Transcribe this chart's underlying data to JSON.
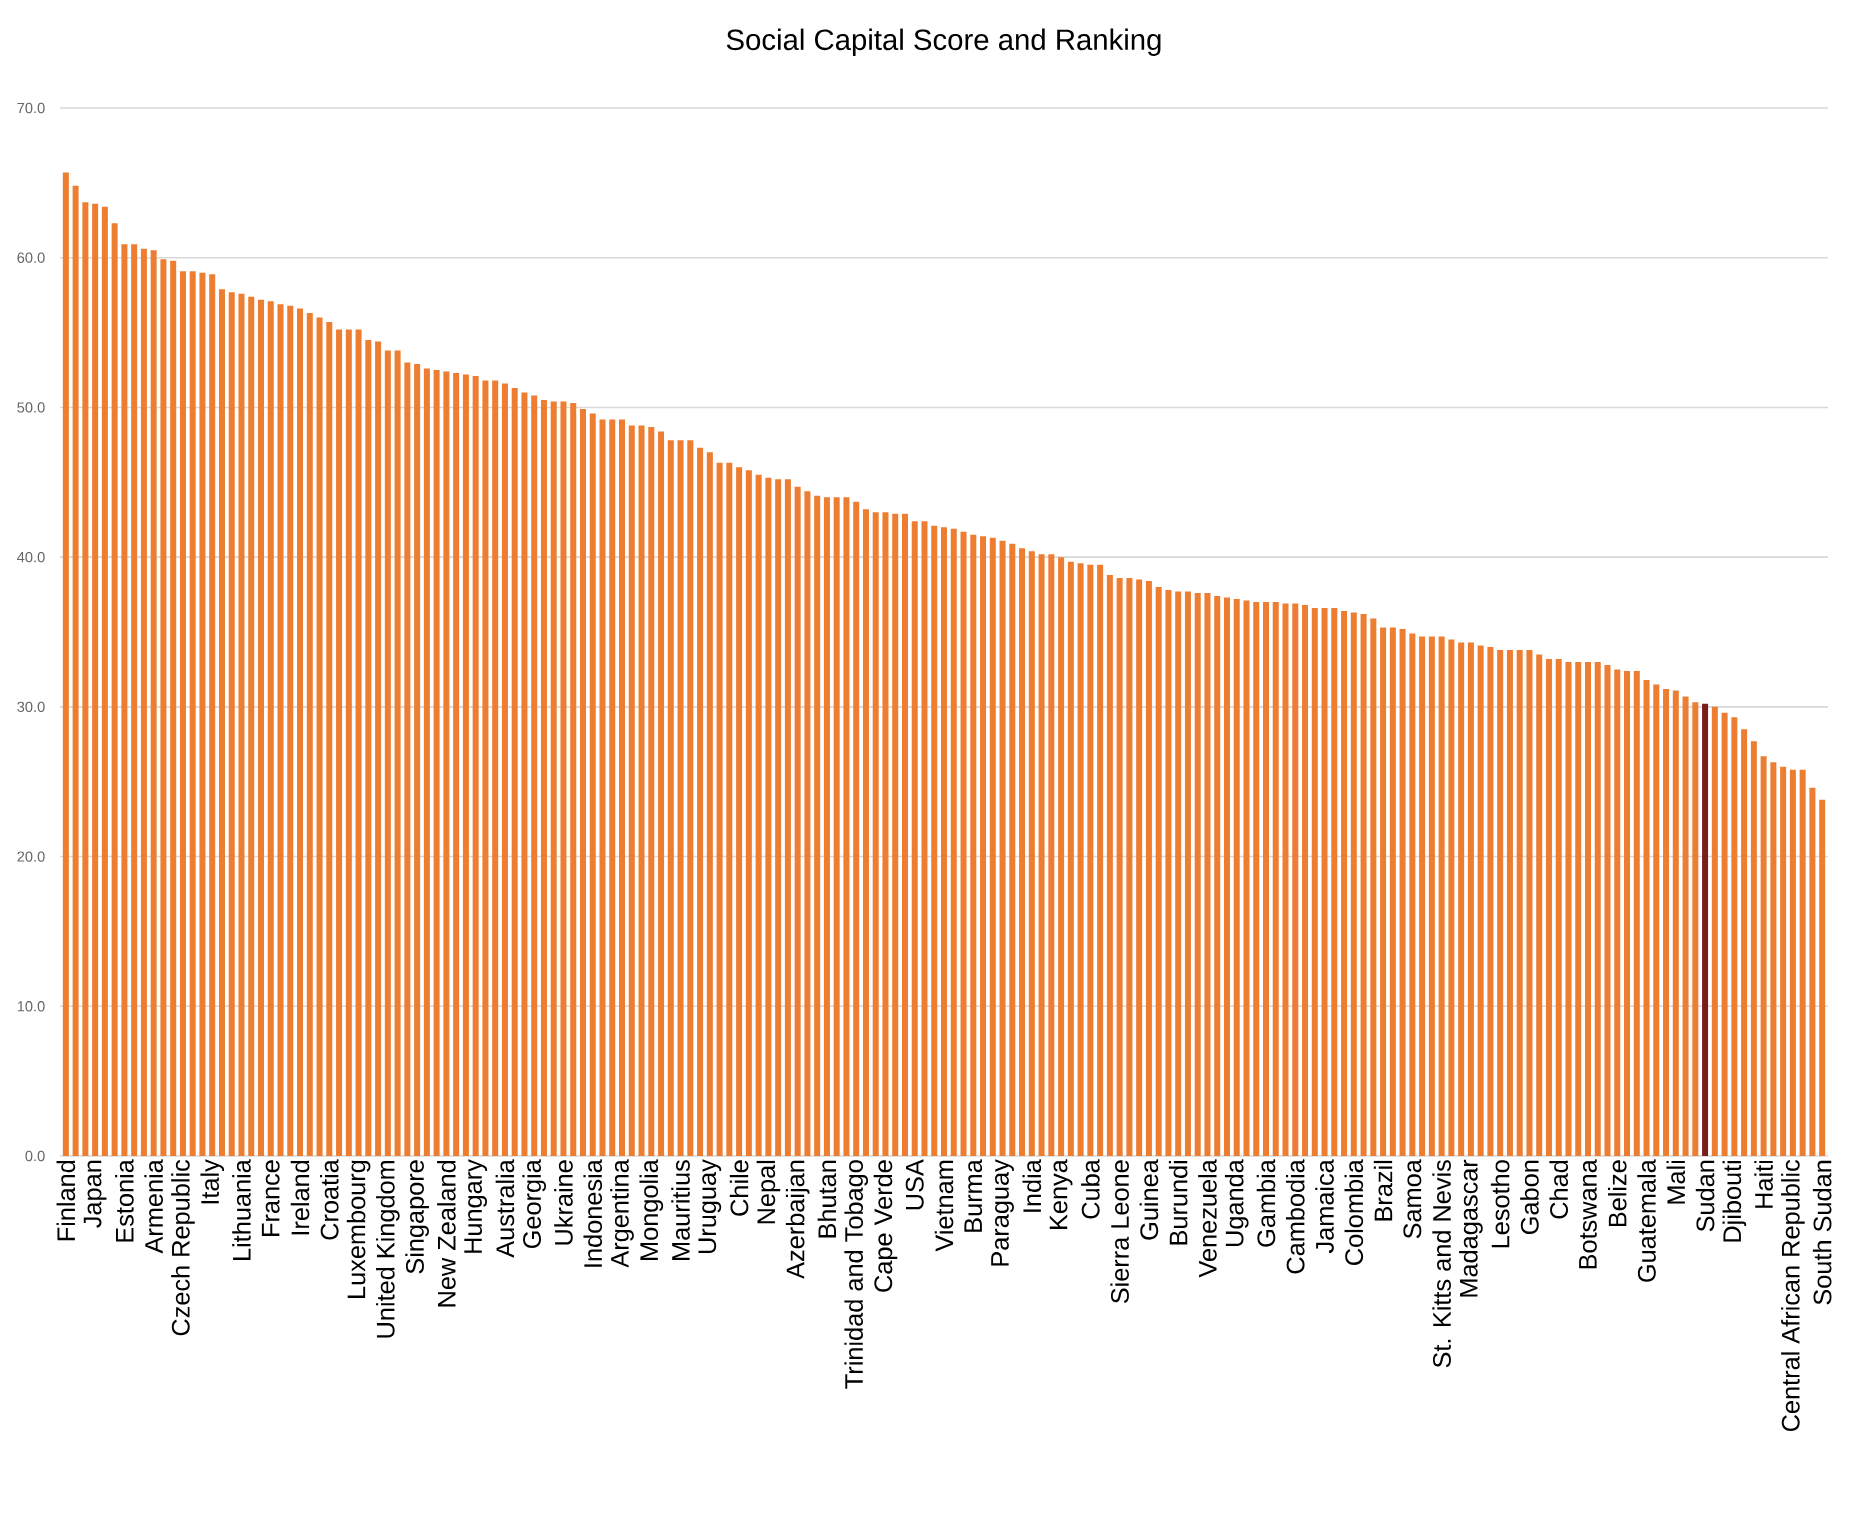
{
  "chart_data": {
    "type": "bar",
    "title": "Social Capital Score  and Ranking",
    "categories": [
      "Finland",
      null,
      null,
      "Japan",
      null,
      null,
      "Estonia",
      null,
      null,
      "Armenia",
      null,
      null,
      "Czech Republic",
      null,
      null,
      "Italy",
      null,
      null,
      "Lithuania",
      null,
      null,
      "France",
      null,
      null,
      "Ireland",
      null,
      null,
      "Croatia",
      null,
      null,
      "Luxembourg",
      null,
      null,
      "United Kingdom",
      null,
      null,
      "Singapore",
      null,
      null,
      "New Zealand",
      null,
      null,
      "Hungary",
      null,
      null,
      "Australia",
      null,
      null,
      "Georgia",
      null,
      null,
      "Ukraine",
      null,
      null,
      "Indonesia",
      null,
      null,
      "Argentina",
      null,
      null,
      "Mongolia",
      null,
      null,
      "Mauritius",
      null,
      null,
      "Uruguay",
      null,
      null,
      "Chile",
      null,
      null,
      "Nepal",
      null,
      null,
      "Azerbaijan",
      null,
      null,
      "Bhutan",
      null,
      null,
      "Trinidad and Tobago",
      null,
      null,
      "Cape Verde",
      null,
      null,
      "USA",
      null,
      null,
      "Vietnam",
      null,
      null,
      "Burma",
      null,
      null,
      "Paraguay",
      null,
      null,
      "India",
      null,
      null,
      "Kenya",
      null,
      null,
      "Cuba",
      null,
      null,
      "Sierra Leone",
      null,
      null,
      "Guinea",
      null,
      null,
      "Burundi",
      null,
      null,
      "Venezuela",
      null,
      null,
      "Uganda",
      null,
      null,
      "Gambia",
      null,
      null,
      "Cambodia",
      null,
      null,
      "Jamaica",
      null,
      null,
      "Colombia",
      null,
      null,
      "Brazil",
      null,
      null,
      "Samoa",
      null,
      null,
      "St. Kitts and Nevis",
      null,
      null,
      "Madagascar",
      null,
      null,
      "Lesotho",
      null,
      null,
      "Gabon",
      null,
      null,
      "Chad",
      null,
      null,
      "Botswana",
      null,
      null,
      "Belize",
      null,
      null,
      "Guatemala",
      null,
      null,
      "Mali",
      null,
      null,
      "Sudan",
      null,
      null,
      "Djibouti",
      null,
      null,
      "Haiti",
      null,
      null,
      "Central African Republic",
      null,
      null,
      "South Sudan"
    ],
    "values": [
      65.7,
      64.8,
      63.7,
      63.6,
      63.4,
      62.3,
      60.9,
      60.9,
      60.6,
      60.5,
      59.9,
      59.8,
      59.1,
      59.1,
      59.0,
      58.9,
      57.9,
      57.7,
      57.6,
      57.4,
      57.2,
      57.1,
      56.9,
      56.8,
      56.6,
      56.3,
      56.0,
      55.7,
      55.2,
      55.2,
      55.2,
      54.5,
      54.4,
      53.8,
      53.8,
      53.0,
      52.9,
      52.6,
      52.5,
      52.4,
      52.3,
      52.2,
      52.1,
      51.8,
      51.8,
      51.6,
      51.3,
      51.0,
      50.8,
      50.5,
      50.4,
      50.4,
      50.3,
      49.9,
      49.6,
      49.2,
      49.2,
      49.2,
      48.8,
      48.8,
      48.7,
      48.4,
      47.8,
      47.8,
      47.8,
      47.3,
      47.0,
      46.3,
      46.3,
      46.0,
      45.8,
      45.5,
      45.3,
      45.2,
      45.2,
      44.7,
      44.4,
      44.1,
      44.0,
      44.0,
      44.0,
      43.7,
      43.2,
      43.0,
      43.0,
      42.9,
      42.9,
      42.4,
      42.4,
      42.1,
      42.0,
      41.9,
      41.7,
      41.5,
      41.4,
      41.3,
      41.1,
      40.9,
      40.6,
      40.4,
      40.2,
      40.2,
      40.0,
      39.7,
      39.6,
      39.5,
      39.5,
      38.8,
      38.6,
      38.6,
      38.5,
      38.4,
      38.0,
      37.8,
      37.7,
      37.7,
      37.6,
      37.6,
      37.4,
      37.3,
      37.2,
      37.1,
      37.0,
      37.0,
      37.0,
      36.9,
      36.9,
      36.8,
      36.6,
      36.6,
      36.6,
      36.4,
      36.3,
      36.2,
      35.9,
      35.3,
      35.3,
      35.2,
      34.9,
      34.7,
      34.7,
      34.7,
      34.5,
      34.3,
      34.3,
      34.1,
      34.0,
      33.8,
      33.8,
      33.8,
      33.8,
      33.5,
      33.2,
      33.2,
      33.0,
      33.0,
      33.0,
      33.0,
      32.8,
      32.5,
      32.4,
      32.4,
      31.8,
      31.5,
      31.2,
      31.1,
      30.7,
      30.3,
      30.2,
      30.0,
      29.6,
      29.3,
      28.5,
      27.7,
      26.7,
      26.3,
      26.0,
      25.8,
      25.8,
      24.6,
      23.8
    ],
    "colors": [
      "#ed7d31",
      "#ed7d31",
      "#ed7d31",
      "#ed7d31",
      "#ed7d31",
      "#ed7d31",
      "#ed7d31",
      "#ed7d31",
      "#ed7d31",
      "#ed7d31",
      "#ed7d31",
      "#ed7d31",
      "#ed7d31",
      "#ed7d31",
      "#ed7d31",
      "#ed7d31",
      "#ed7d31",
      "#ed7d31",
      "#ed7d31",
      "#ed7d31",
      "#ed7d31",
      "#ed7d31",
      "#ed7d31",
      "#ed7d31",
      "#ed7d31",
      "#ed7d31",
      "#ed7d31",
      "#ed7d31",
      "#ed7d31",
      "#ed7d31",
      "#ed7d31",
      "#ed7d31",
      "#ed7d31",
      "#ed7d31",
      "#ed7d31",
      "#ed7d31",
      "#ed7d31",
      "#ed7d31",
      "#ed7d31",
      "#ed7d31",
      "#ed7d31",
      "#ed7d31",
      "#ed7d31",
      "#ed7d31",
      "#ed7d31",
      "#ed7d31",
      "#ed7d31",
      "#ed7d31",
      "#ed7d31",
      "#ed7d31",
      "#ed7d31",
      "#ed7d31",
      "#ed7d31",
      "#ed7d31",
      "#ed7d31",
      "#ed7d31",
      "#ed7d31",
      "#ed7d31",
      "#ed7d31",
      "#ed7d31",
      "#ed7d31",
      "#ed7d31",
      "#ed7d31",
      "#ed7d31",
      "#ed7d31",
      "#ed7d31",
      "#ed7d31",
      "#ed7d31",
      "#ed7d31",
      "#ed7d31",
      "#ed7d31",
      "#ed7d31",
      "#ed7d31",
      "#ed7d31",
      "#ed7d31",
      "#ed7d31",
      "#ed7d31",
      "#ed7d31",
      "#ed7d31",
      "#ed7d31",
      "#ed7d31",
      "#ed7d31",
      "#ed7d31",
      "#ed7d31",
      "#ed7d31",
      "#ed7d31",
      "#ed7d31",
      "#ed7d31",
      "#ed7d31",
      "#ed7d31",
      "#ed7d31",
      "#ed7d31",
      "#ed7d31",
      "#ed7d31",
      "#ed7d31",
      "#ed7d31",
      "#ed7d31",
      "#ed7d31",
      "#ed7d31",
      "#ed7d31",
      "#ed7d31",
      "#ed7d31",
      "#ed7d31",
      "#ed7d31",
      "#ed7d31",
      "#ed7d31",
      "#ed7d31",
      "#ed7d31",
      "#ed7d31",
      "#ed7d31",
      "#ed7d31",
      "#ed7d31",
      "#ed7d31",
      "#ed7d31",
      "#ed7d31",
      "#ed7d31",
      "#ed7d31",
      "#ed7d31",
      "#ed7d31",
      "#ed7d31",
      "#ed7d31",
      "#ed7d31",
      "#ed7d31",
      "#ed7d31",
      "#ed7d31",
      "#ed7d31",
      "#ed7d31",
      "#ed7d31",
      "#ed7d31",
      "#ed7d31",
      "#ed7d31",
      "#ed7d31",
      "#ed7d31",
      "#ed7d31",
      "#ed7d31",
      "#ed7d31",
      "#ed7d31",
      "#ed7d31",
      "#ed7d31",
      "#ed7d31",
      "#ed7d31",
      "#ed7d31",
      "#ed7d31",
      "#ed7d31",
      "#ed7d31",
      "#ed7d31",
      "#ed7d31",
      "#ed7d31",
      "#ed7d31",
      "#ed7d31",
      "#ed7d31",
      "#ed7d31",
      "#ed7d31",
      "#ed7d31",
      "#ed7d31",
      "#ed7d31",
      "#ed7d31",
      "#ed7d31",
      "#ed7d31",
      "#ed7d31",
      "#ed7d31",
      "#ed7d31",
      "#ed7d31",
      "#ed7d31",
      "#ed7d31",
      "#ed7d31",
      "#ed7d31",
      "#ed7d31",
      "#7b1c1c",
      "#ed7d31",
      "#ed7d31",
      "#ed7d31",
      "#ed7d31",
      "#ed7d31",
      "#ed7d31",
      "#ed7d31",
      "#ed7d31",
      "#ed7d31",
      "#ed7d31",
      "#ed7d31",
      "#ed7d31"
    ],
    "ylim": [
      0,
      70
    ],
    "yticks": [
      {
        "value": 0,
        "label": "0.0"
      },
      {
        "value": 10,
        "label": "10.0"
      },
      {
        "value": 20,
        "label": "20.0"
      },
      {
        "value": 30,
        "label": "30.0"
      },
      {
        "value": 40,
        "label": "40.0"
      },
      {
        "value": 50,
        "label": "50.0"
      },
      {
        "value": 60,
        "label": "60.0"
      },
      {
        "value": 70,
        "label": "70.0"
      }
    ],
    "grid": "y"
  }
}
